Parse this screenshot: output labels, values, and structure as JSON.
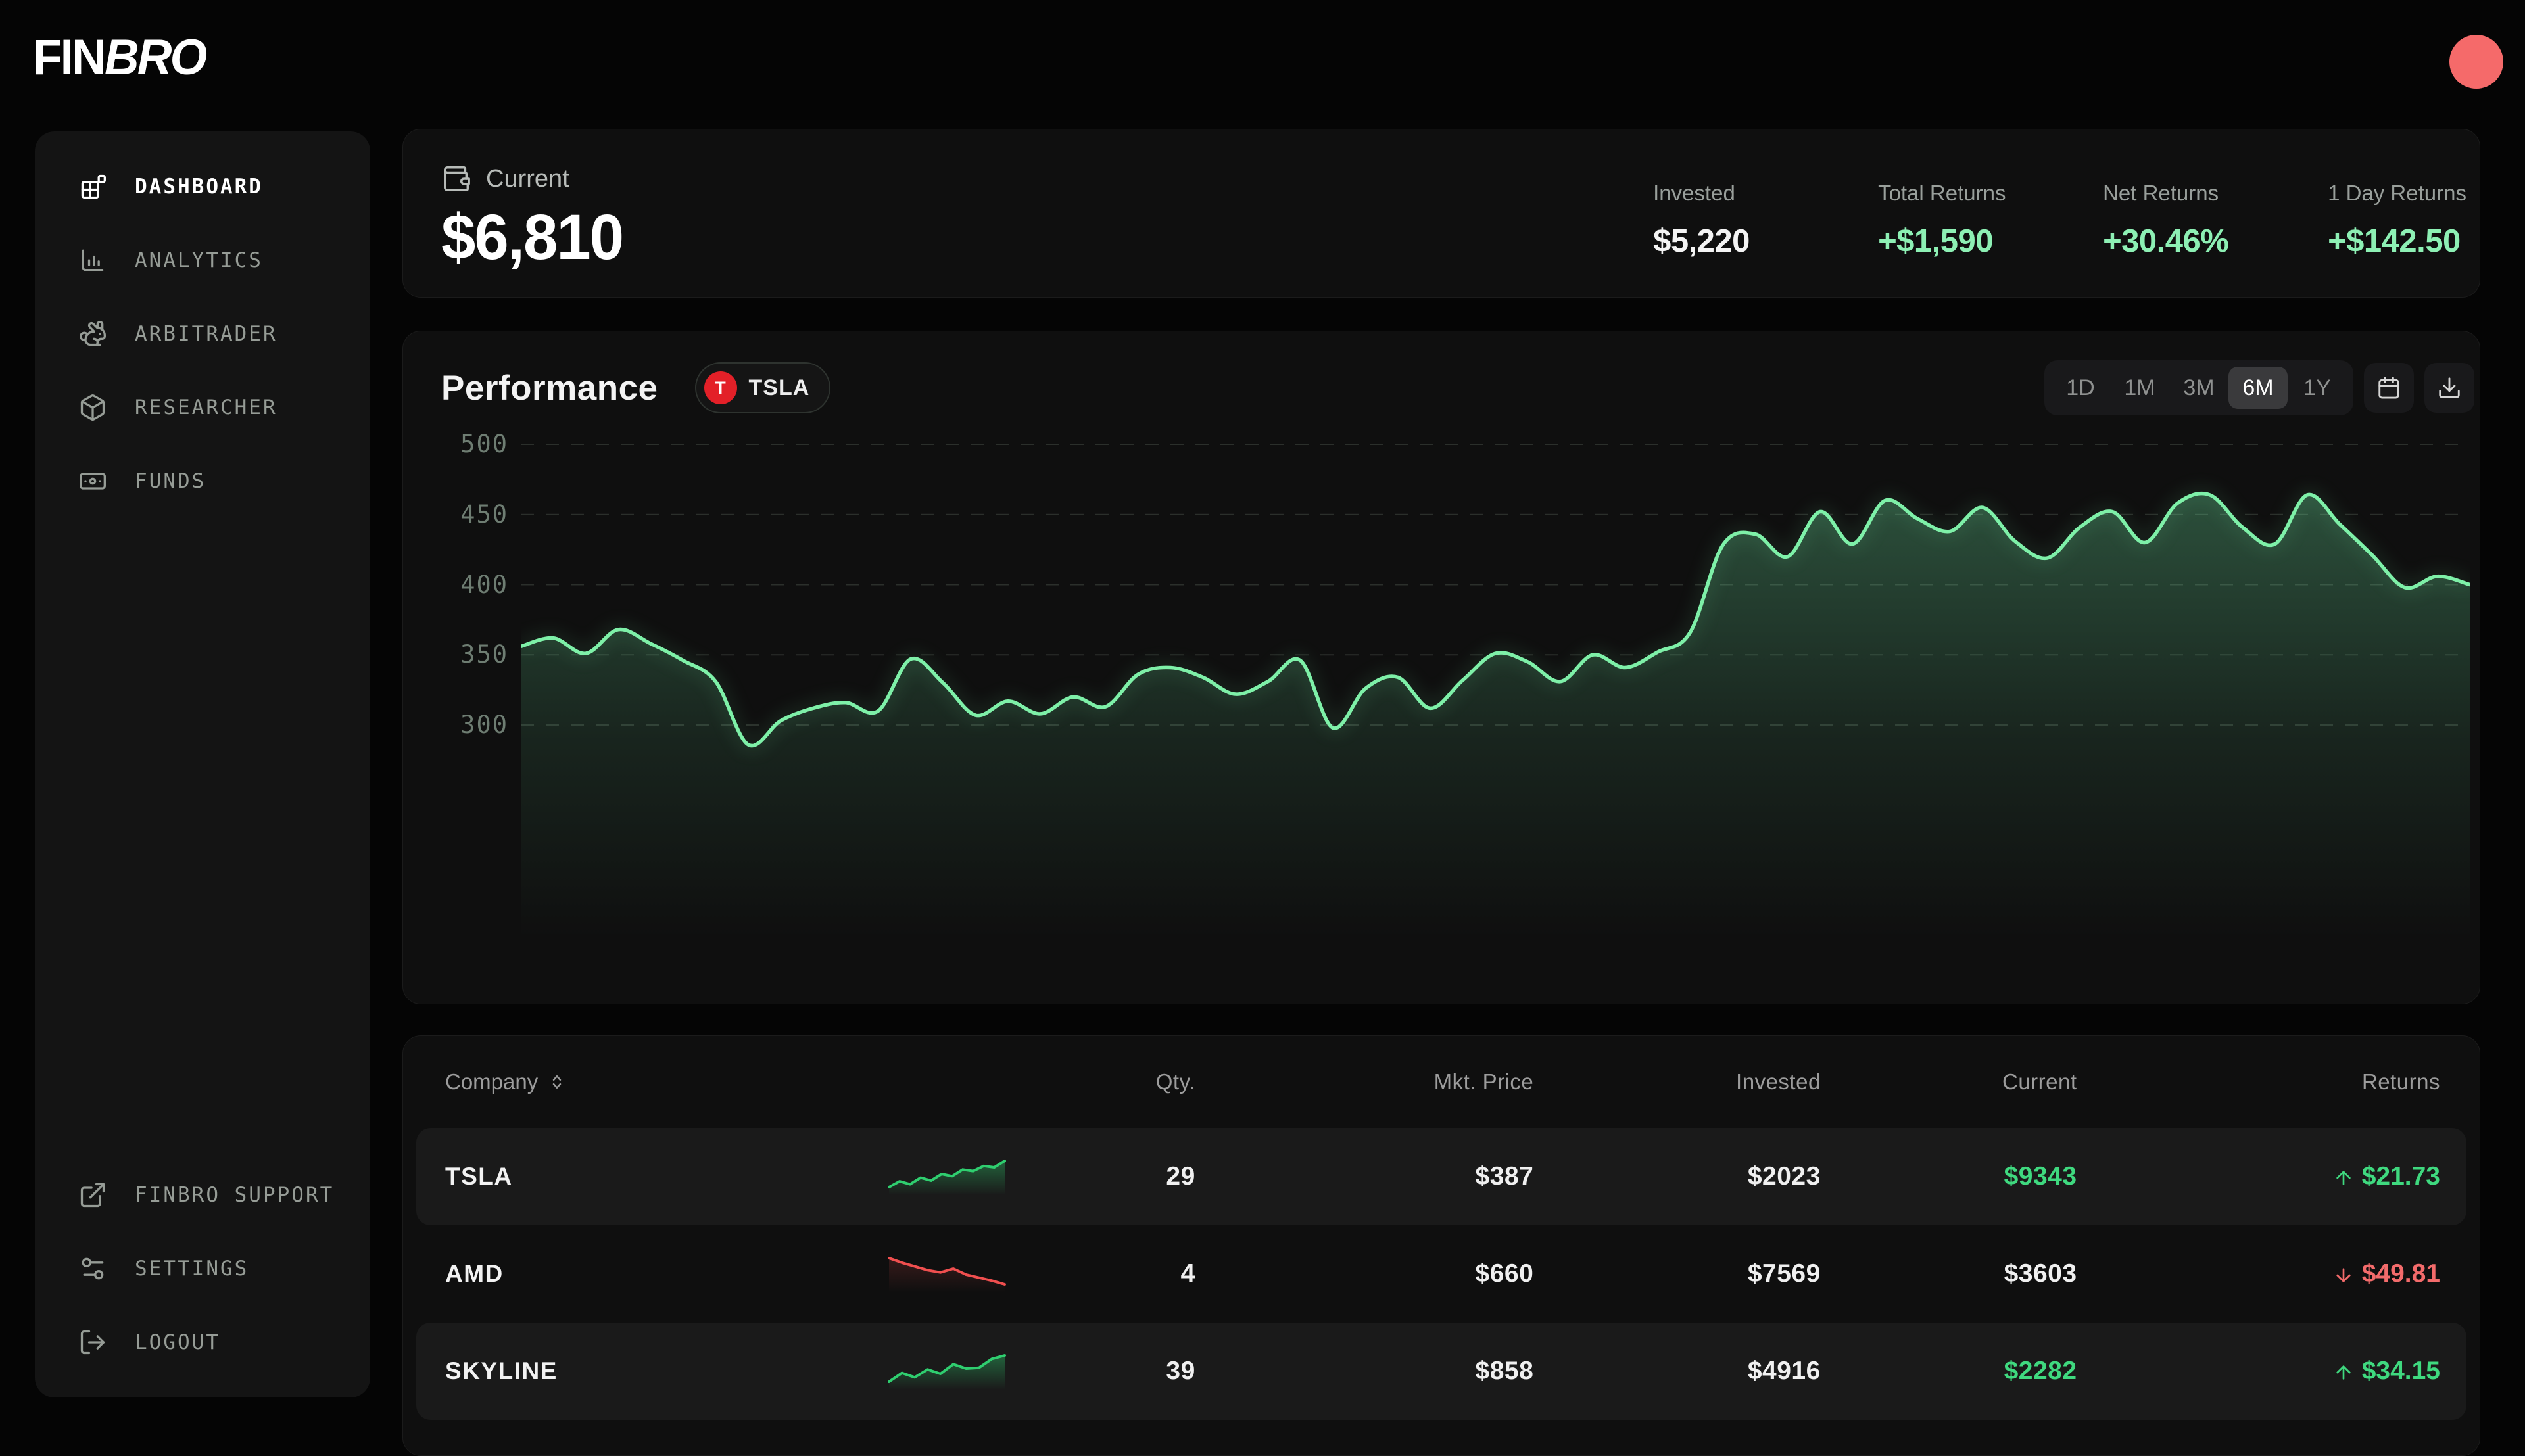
{
  "brand": {
    "name_regular": "FIN",
    "name_italic": "BRO"
  },
  "topbar": {
    "avatar_color": "#f56a6a"
  },
  "sidebar": {
    "items": [
      {
        "label": "DASHBOARD",
        "icon": "dashboard-icon",
        "active": true
      },
      {
        "label": "ANALYTICS",
        "icon": "analytics-icon",
        "active": false
      },
      {
        "label": "ARBITRADER",
        "icon": "rabbit-icon",
        "active": false
      },
      {
        "label": "RESEARCHER",
        "icon": "cube-icon",
        "active": false
      },
      {
        "label": "FUNDS",
        "icon": "banknote-icon",
        "active": false
      }
    ],
    "footer_items": [
      {
        "label": "FINBRO SUPPORT",
        "icon": "external-link-icon"
      },
      {
        "label": "SETTINGS",
        "icon": "sliders-icon"
      },
      {
        "label": "LOGOUT",
        "icon": "logout-icon"
      }
    ]
  },
  "summary": {
    "label": "Current",
    "value": "$6,810",
    "stats": [
      {
        "label": "Invested",
        "value": "$5,220",
        "tone": "white"
      },
      {
        "label": "Total Returns",
        "value": "+$1,590",
        "tone": "green"
      },
      {
        "label": "Net Returns",
        "value": "+30.46%",
        "tone": "green"
      },
      {
        "label": "1 Day Returns",
        "value": "+$142.50",
        "tone": "green"
      }
    ]
  },
  "performance": {
    "title": "Performance",
    "badge": {
      "ticker": "TSLA",
      "initial": "T",
      "color": "#e32028"
    },
    "ranges": [
      "1D",
      "1M",
      "3M",
      "6M",
      "1Y"
    ],
    "active_range": "6M"
  },
  "chart_data": {
    "type": "area",
    "title": "Performance",
    "series_name": "TSLA",
    "range": "6M",
    "yticks": [
      500,
      450,
      400,
      350,
      300
    ],
    "ylim": [
      254,
      515
    ],
    "grid": "dashed-horizontal",
    "legend": false,
    "line_color": "#7ef0a8",
    "fill_color": "rgba(110,231,163,0.28)",
    "values": [
      356,
      362,
      351,
      368,
      358,
      346,
      331,
      286,
      303,
      312,
      316,
      310,
      347,
      330,
      307,
      317,
      308,
      320,
      313,
      336,
      341,
      334,
      322,
      331,
      346,
      298,
      326,
      334,
      312,
      332,
      351,
      345,
      331,
      350,
      341,
      352,
      366,
      428,
      436,
      420,
      452,
      429,
      460,
      447,
      438,
      455,
      431,
      419,
      441,
      452,
      430,
      458,
      464,
      441,
      429,
      464,
      443,
      421,
      398,
      406,
      400
    ]
  },
  "table": {
    "columns": [
      "Company",
      "Qty.",
      "Mkt. Price",
      "Invested",
      "Current",
      "Returns"
    ],
    "rows": [
      {
        "company": "TSLA",
        "qty": "29",
        "mkt_price": "$387",
        "invested": "$2023",
        "current": "$9343",
        "returns": "$21.73",
        "direction": "up",
        "tone": "green",
        "shaded": true,
        "spark": [
          34,
          42,
          38,
          47,
          43,
          52,
          49,
          58,
          56,
          63,
          61,
          70
        ]
      },
      {
        "company": "AMD",
        "qty": "4",
        "mkt_price": "$660",
        "invested": "$7569",
        "current": "$3603",
        "returns": "$49.81",
        "direction": "down",
        "tone": "red",
        "shaded": false,
        "spark": [
          68,
          62,
          57,
          52,
          49,
          54,
          46,
          42,
          38,
          33
        ]
      },
      {
        "company": "SKYLINE",
        "qty": "39",
        "mkt_price": "$858",
        "invested": "$4916",
        "current": "$2282",
        "returns": "$34.15",
        "direction": "up",
        "tone": "green",
        "shaded": true,
        "spark": [
          32,
          42,
          37,
          46,
          41,
          52,
          47,
          48,
          58,
          62
        ]
      }
    ],
    "spark_colors": {
      "up": "#2fce6f",
      "down": "#f04f4f"
    }
  }
}
